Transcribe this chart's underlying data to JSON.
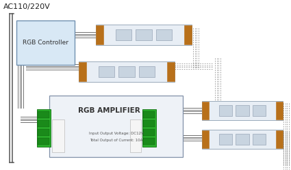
{
  "title": "AC110/220V",
  "bg_color": "#ffffff",
  "controller_label": "RGB Controller",
  "amplifier_label": "RGB AMPLIFIER",
  "amp_sub_label1": "Input Output Voltage: DC12V",
  "amp_sub_label2": "Total Output of Current: 10A",
  "strip_fill": "#e8eef5",
  "strip_border": "#9aaabb",
  "connector_brown": "#b8701a",
  "led_fill": "#c8d4e0",
  "led_border": "#8898aa",
  "wire_solid": "#707070",
  "wire_dashed": "#909090",
  "green_fill": "#2db02d",
  "green_border": "#1a7a1a",
  "controller_fill": "#d8e8f5",
  "controller_border": "#7090b0",
  "amp_fill": "#eef2f7",
  "amp_border": "#8090a8",
  "ac_line": "#555555",
  "title_color": "#202020",
  "amp_text_color": "#333333",
  "amp_sub_color": "#555555"
}
